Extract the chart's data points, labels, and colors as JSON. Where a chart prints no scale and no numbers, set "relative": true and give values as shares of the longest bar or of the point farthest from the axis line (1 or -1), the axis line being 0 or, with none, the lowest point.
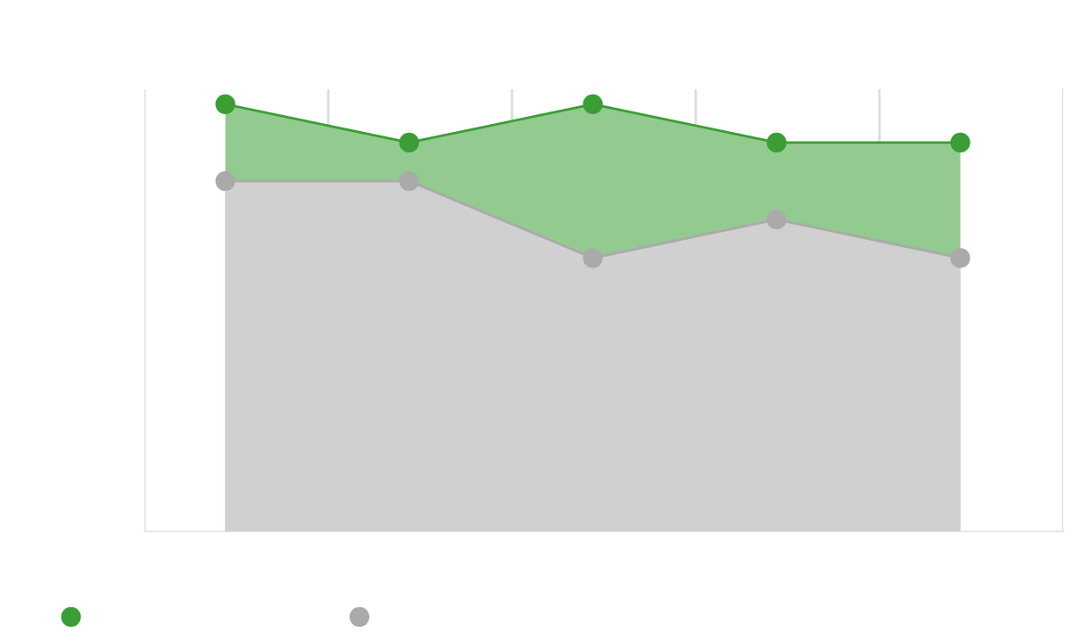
{
  "chart_data": {
    "type": "area",
    "relative": true,
    "categories": [
      null,
      null,
      null,
      null,
      null
    ],
    "series": [
      {
        "color": "#3a9e35",
        "values": [
          1,
          0.91,
          1,
          0.91,
          0.91
        ]
      },
      {
        "color": "#aaaaaa",
        "values": [
          0.82,
          0.82,
          0.64,
          0.73,
          0.64
        ]
      }
    ],
    "grid": "x",
    "marker": "circle"
  }
}
